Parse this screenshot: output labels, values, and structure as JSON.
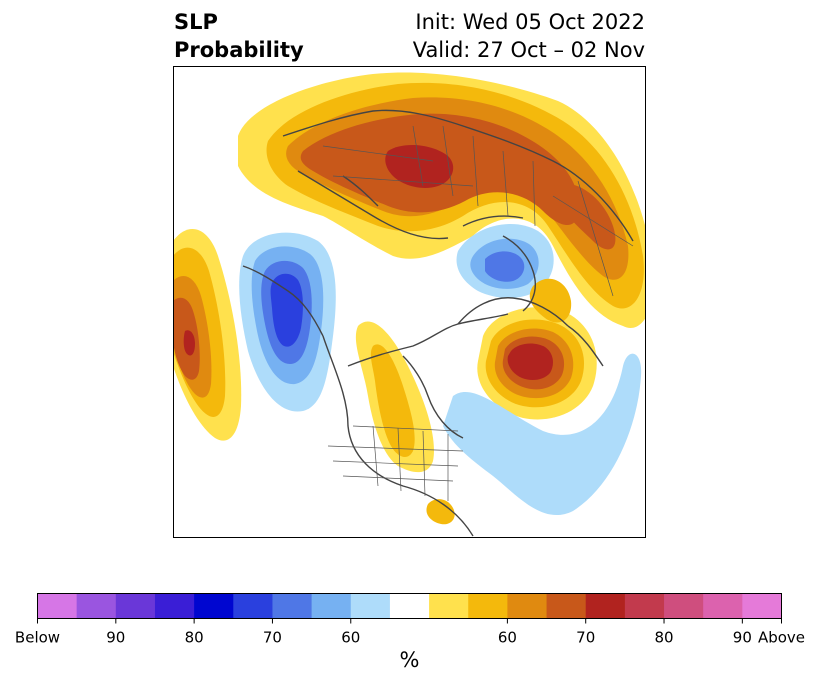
{
  "title": {
    "variable": "SLP",
    "subtitle": "Probability",
    "init": "Init: Wed 05 Oct 2022",
    "valid": "Valid: 27 Oct – 02 Nov"
  },
  "map": {
    "projection": "north polar stereographic",
    "hemisphere": "Northern Hemisphere",
    "features": {
      "below_normal": [
        "North Pacific (Gulf of Alaska) low, ~80%",
        "Arctic Ocean / Kara Sea low, ~70%",
        "western Atlantic band, ~60%"
      ],
      "above_normal": [
        "central Siberia high, ~80%",
        "North Atlantic high, ~80%",
        "central North Pacific high, ~80%",
        "Canada/Great Lakes band, ~60%"
      ]
    }
  },
  "colorbar": {
    "label": "%",
    "tick_labels": [
      "Below",
      "90",
      "80",
      "70",
      "60",
      "60",
      "70",
      "80",
      "90",
      "Above"
    ],
    "colors": [
      "#d676e6",
      "#9a55e0",
      "#6a37d8",
      "#3a1ed6",
      "#0006d0",
      "#2a40de",
      "#4f77e6",
      "#76b1f2",
      "#aedcfa",
      "#ffffff",
      "#ffe14d",
      "#f4b90c",
      "#e08a10",
      "#c8581a",
      "#b1231f",
      "#c23a4d",
      "#cf4e7e",
      "#dc62ae",
      "#e57ad9"
    ]
  }
}
